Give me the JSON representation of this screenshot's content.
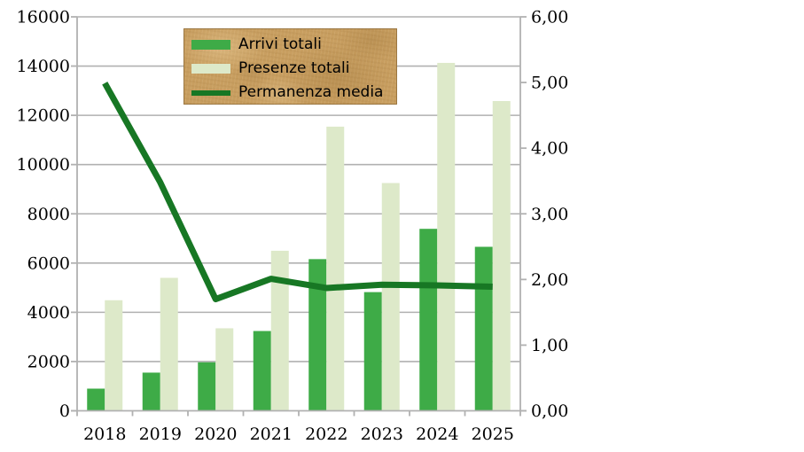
{
  "chart_data": {
    "type": "combo bar+line",
    "title": "",
    "xlabel": "",
    "ylabel_left": "",
    "ylabel_right": "",
    "categories": [
      "2018",
      "2019",
      "2020",
      "2021",
      "2022",
      "2023",
      "2024",
      "2025"
    ],
    "series": [
      {
        "name": "Arrivi totali",
        "type": "bar",
        "axis": "left",
        "color": "#3eab47",
        "values": [
          900,
          1550,
          1970,
          3240,
          6160,
          4820,
          7390,
          6660
        ]
      },
      {
        "name": "Presenze totali",
        "type": "bar",
        "axis": "left",
        "color": "#dde9c9",
        "values": [
          4490,
          5400,
          3350,
          6500,
          11540,
          9250,
          14130,
          12580
        ]
      },
      {
        "name": "Permanenza media",
        "type": "line",
        "axis": "right",
        "color": "#177724",
        "values": [
          4.99,
          3.48,
          1.7,
          2.01,
          1.87,
          1.92,
          1.91,
          1.89
        ]
      }
    ],
    "left_axis": {
      "min": 0,
      "max": 16000,
      "step": 2000,
      "tick_labels": [
        "0",
        "2000",
        "4000",
        "6000",
        "8000",
        "10000",
        "12000",
        "14000",
        "16000"
      ]
    },
    "right_axis": {
      "min": 0,
      "max": 6,
      "step": 1,
      "tick_labels": [
        "0,00",
        "1,00",
        "2,00",
        "3,00",
        "4,00",
        "5,00",
        "6,00"
      ]
    },
    "grid": "horizontal",
    "legend_position": "top-center overlay"
  },
  "legend": {
    "items": [
      {
        "label": "Arrivi totali"
      },
      {
        "label": "Presenze totali"
      },
      {
        "label": "Permanenza media"
      }
    ],
    "background_color": "#c89e60"
  },
  "colors": {
    "arrivi_bar": "#3eab47",
    "presenze_bar": "#dde9c9",
    "permanenza_line": "#177724",
    "gridline": "#b1b1b1",
    "axis_line": "#b1b1b1",
    "axis_text": "#000000",
    "plot_background": "#ffffff",
    "legend_background": "#c89e60"
  }
}
